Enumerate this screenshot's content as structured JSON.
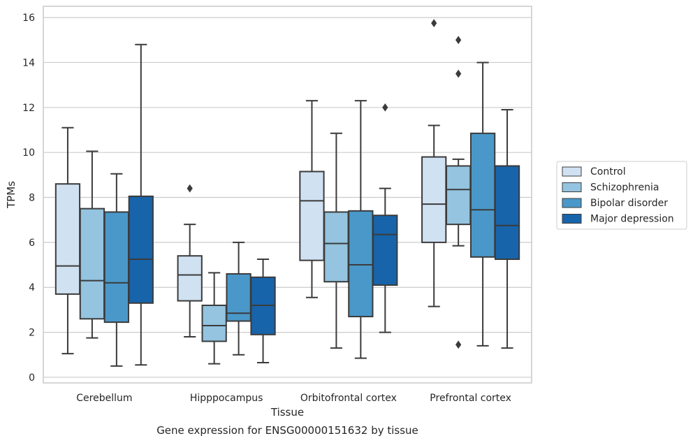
{
  "caption": "Gene expression for ENSG00000151632 by tissue",
  "chart_data": {
    "type": "boxplot",
    "xlabel": "Tissue",
    "ylabel": "TPMs",
    "ylim": [
      -0.25,
      16.5
    ],
    "yticks": [
      0,
      2,
      4,
      6,
      8,
      10,
      12,
      14,
      16
    ],
    "grid": true,
    "legend_position": "right",
    "categories": [
      "Cerebellum",
      "Hipppocampus",
      "Orbitofrontal cortex",
      "Prefrontal cortex"
    ],
    "series": [
      {
        "name": "Control",
        "color": "#d0e1f2",
        "boxes": [
          {
            "whislo": 1.05,
            "q1": 3.7,
            "med": 4.95,
            "q3": 8.6,
            "whishi": 11.1,
            "fliers": []
          },
          {
            "whislo": 1.8,
            "q1": 3.4,
            "med": 4.55,
            "q3": 5.4,
            "whishi": 6.8,
            "fliers": [
              8.4
            ]
          },
          {
            "whislo": 3.55,
            "q1": 5.2,
            "med": 7.85,
            "q3": 9.15,
            "whishi": 12.3,
            "fliers": []
          },
          {
            "whislo": 3.15,
            "q1": 6.0,
            "med": 7.7,
            "q3": 9.8,
            "whishi": 11.2,
            "fliers": [
              15.75
            ]
          }
        ]
      },
      {
        "name": "Schizophrenia",
        "color": "#94c4df",
        "boxes": [
          {
            "whislo": 1.75,
            "q1": 2.6,
            "med": 4.3,
            "q3": 7.5,
            "whishi": 10.05,
            "fliers": []
          },
          {
            "whislo": 0.6,
            "q1": 1.6,
            "med": 2.3,
            "q3": 3.2,
            "whishi": 4.65,
            "fliers": []
          },
          {
            "whislo": 1.3,
            "q1": 4.25,
            "med": 5.95,
            "q3": 7.35,
            "whishi": 10.85,
            "fliers": []
          },
          {
            "whislo": 5.85,
            "q1": 6.8,
            "med": 8.35,
            "q3": 9.4,
            "whishi": 9.7,
            "fliers": [
              15.0,
              13.5,
              1.45
            ]
          }
        ]
      },
      {
        "name": "Bipolar disorder",
        "color": "#4a98c9",
        "boxes": [
          {
            "whislo": 0.5,
            "q1": 2.45,
            "med": 4.2,
            "q3": 7.35,
            "whishi": 9.05,
            "fliers": []
          },
          {
            "whislo": 1.0,
            "q1": 2.5,
            "med": 2.85,
            "q3": 4.6,
            "whishi": 6.0,
            "fliers": []
          },
          {
            "whislo": 0.85,
            "q1": 2.7,
            "med": 5.0,
            "q3": 7.4,
            "whishi": 12.3,
            "fliers": []
          },
          {
            "whislo": 1.4,
            "q1": 5.35,
            "med": 7.45,
            "q3": 10.85,
            "whishi": 14.0,
            "fliers": []
          }
        ]
      },
      {
        "name": "Major depression",
        "color": "#1764ab",
        "boxes": [
          {
            "whislo": 0.55,
            "q1": 3.3,
            "med": 5.25,
            "q3": 8.05,
            "whishi": 14.8,
            "fliers": []
          },
          {
            "whislo": 0.65,
            "q1": 1.9,
            "med": 3.2,
            "q3": 4.45,
            "whishi": 5.25,
            "fliers": []
          },
          {
            "whislo": 2.0,
            "q1": 4.1,
            "med": 6.35,
            "q3": 7.2,
            "whishi": 8.4,
            "fliers": [
              12.0
            ]
          },
          {
            "whislo": 1.3,
            "q1": 5.25,
            "med": 6.75,
            "q3": 9.4,
            "whishi": 11.9,
            "fliers": []
          }
        ]
      }
    ]
  }
}
